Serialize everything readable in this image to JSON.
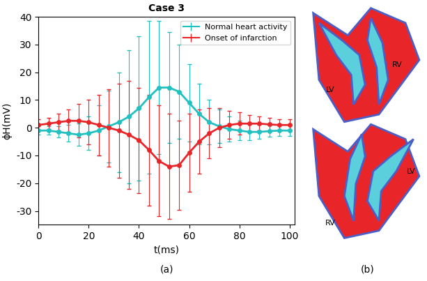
{
  "chart_data": {
    "type": "line",
    "title": "Case 3",
    "y_label": "ϕH(mV)",
    "x_label": "t(ms)",
    "x": [
      0,
      4,
      8,
      12,
      16,
      20,
      24,
      28,
      32,
      36,
      40,
      44,
      48,
      52,
      56,
      60,
      64,
      68,
      72,
      76,
      80,
      84,
      88,
      92,
      96,
      100
    ],
    "series": [
      {
        "name": "Normal heart activity",
        "color": "#22c0c0",
        "marker": "o",
        "values": [
          -1,
          -1,
          -1.5,
          -2,
          -2.5,
          -2,
          -1,
          0.5,
          2,
          4,
          7,
          11,
          14.5,
          14.5,
          13,
          9,
          5,
          2,
          0.5,
          -0.5,
          -1,
          -1.5,
          -1.5,
          -1.2,
          -1,
          -1
        ],
        "errors": [
          1.5,
          1.5,
          2,
          3,
          4,
          6,
          9,
          13,
          18,
          24,
          26,
          27.5,
          24,
          20,
          17,
          14,
          11,
          8,
          6,
          4.5,
          3.5,
          3,
          2.5,
          2,
          2,
          2
        ]
      },
      {
        "name": "Onset of infarction",
        "color": "#e8262a",
        "marker": "o",
        "values": [
          1,
          1.5,
          2,
          2.5,
          2.5,
          2,
          1,
          0,
          -1,
          -2.5,
          -4.5,
          -8,
          -12,
          -14,
          -13.5,
          -9,
          -5,
          -2,
          0,
          1,
          1.5,
          1.5,
          1.5,
          1.2,
          1,
          1
        ],
        "errors": [
          2,
          2,
          3,
          4,
          6,
          8,
          11,
          14,
          17,
          19.5,
          19,
          20,
          20,
          19,
          16,
          14,
          11.5,
          9,
          7,
          5,
          4,
          3,
          2.5,
          2.5,
          2,
          2
        ]
      }
    ],
    "xlim": [
      0,
      102
    ],
    "xticks": [
      0,
      20,
      40,
      60,
      80,
      100
    ],
    "ylim": [
      -35,
      40
    ],
    "yticks": [
      -30,
      -20,
      -10,
      0,
      10,
      20,
      30,
      40
    ],
    "legend": "upper right",
    "grid": false
  },
  "panels": [
    "(a)",
    "(b)"
  ],
  "heart_maps": [
    {
      "labels": [
        "LV",
        "RV"
      ]
    },
    {
      "labels": [
        "RV",
        "LV"
      ]
    }
  ]
}
